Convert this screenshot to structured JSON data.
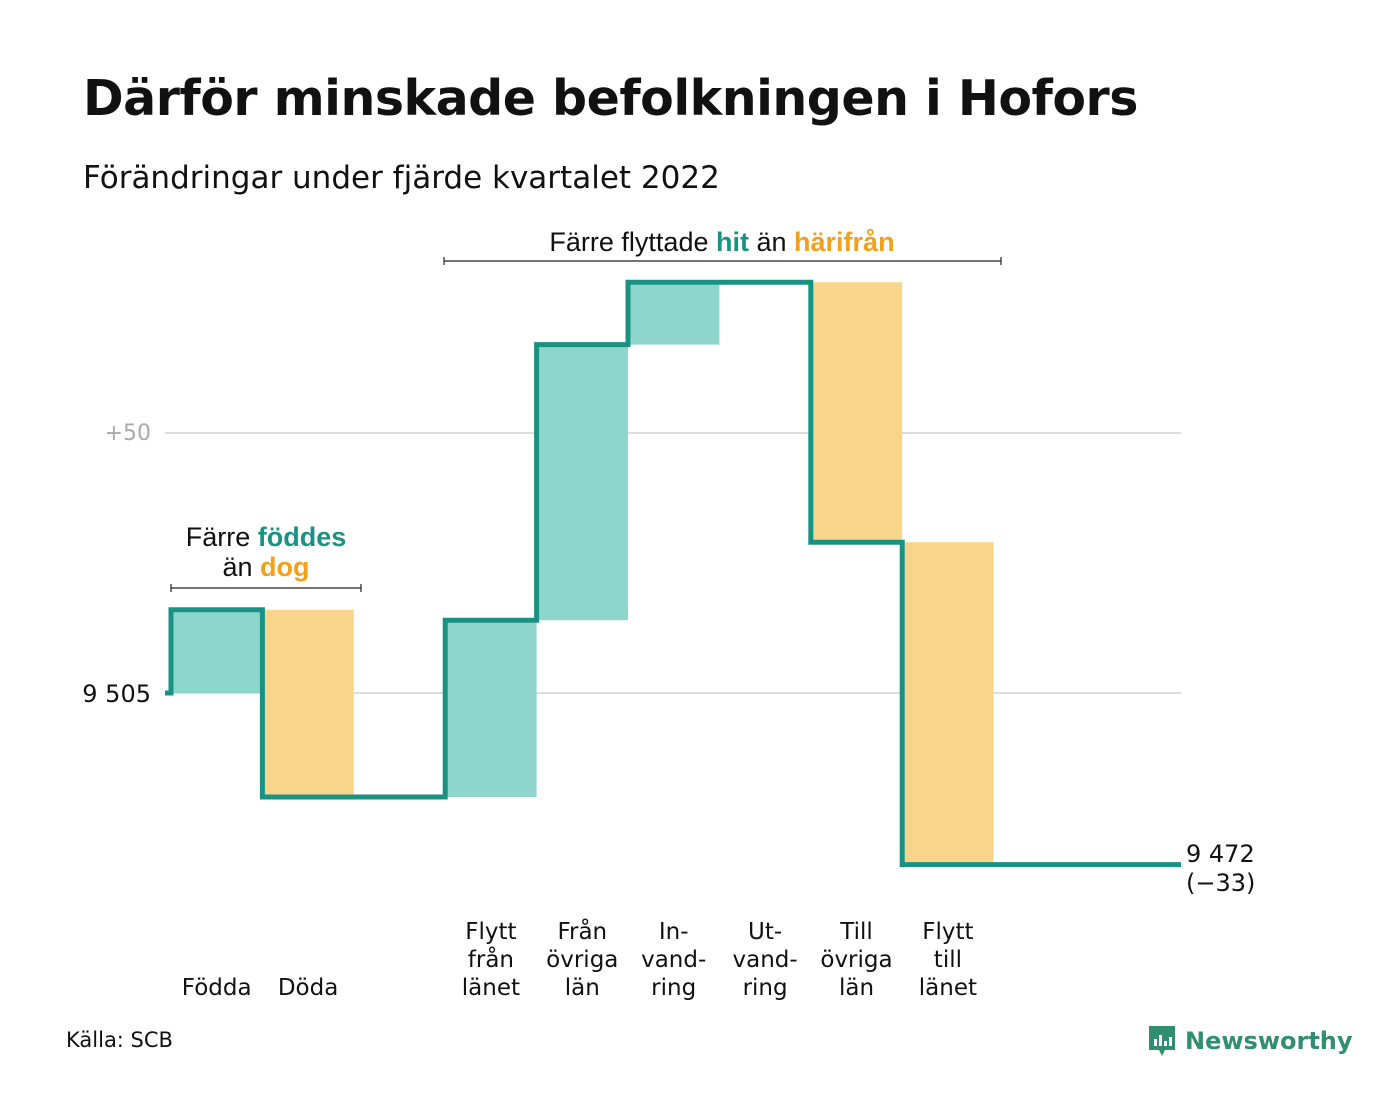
{
  "title": "Därför minskade befolkningen i Hofors",
  "subtitle": "Förändringar under fjärde kvartalet 2022",
  "source": "Källa: SCB",
  "brand": {
    "name": "Newsworthy",
    "icon": "newsworthy-logo-icon"
  },
  "colors": {
    "line": "#1a9283",
    "increase_fill": "#8ed6cc",
    "decrease_fill": "#f9d58c",
    "increase_text": "#1a9283",
    "decrease_text": "#f2a01e",
    "grid": "#dddddd",
    "axis_label": "#aaaaaa",
    "brand": "#2f8f6e"
  },
  "annotations": {
    "births": {
      "pre": "Färre ",
      "hit": "föddes",
      "mid": "än ",
      "out": "dog"
    },
    "moves": {
      "pre": "Färre flyttade ",
      "hit": "hit",
      "mid": " än ",
      "out": "härifrån"
    }
  },
  "chart_data": {
    "type": "waterfall",
    "start_value": 9505,
    "start_label": "9 505",
    "end_value": 9472,
    "end_label": "9 472",
    "end_change_label": "(−33)",
    "gridline_labels": [
      {
        "value": 9555,
        "label": "+50"
      }
    ],
    "steps": [
      {
        "category": "Födda",
        "label_lines": [
          "Födda"
        ],
        "delta": 16
      },
      {
        "category": "Döda",
        "label_lines": [
          "Döda"
        ],
        "delta": -36
      },
      {
        "category": "",
        "label_lines": [],
        "delta": 0
      },
      {
        "category": "Flytt från länet",
        "label_lines": [
          "Flytt",
          "från",
          "länet"
        ],
        "delta": 34
      },
      {
        "category": "Från övriga län",
        "label_lines": [
          "Från",
          "övriga",
          "län"
        ],
        "delta": 53
      },
      {
        "category": "Invandring",
        "label_lines": [
          "In-",
          "vand-",
          "ring"
        ],
        "delta": 12
      },
      {
        "category": "Utvandring",
        "label_lines": [
          "Ut-",
          "vand-",
          "ring"
        ],
        "delta": 0
      },
      {
        "category": "Till övriga län",
        "label_lines": [
          "Till",
          "övriga",
          "län"
        ],
        "delta": -50
      },
      {
        "category": "Flytt till länet",
        "label_lines": [
          "Flytt",
          "till",
          "länet"
        ],
        "delta": -62
      }
    ]
  }
}
